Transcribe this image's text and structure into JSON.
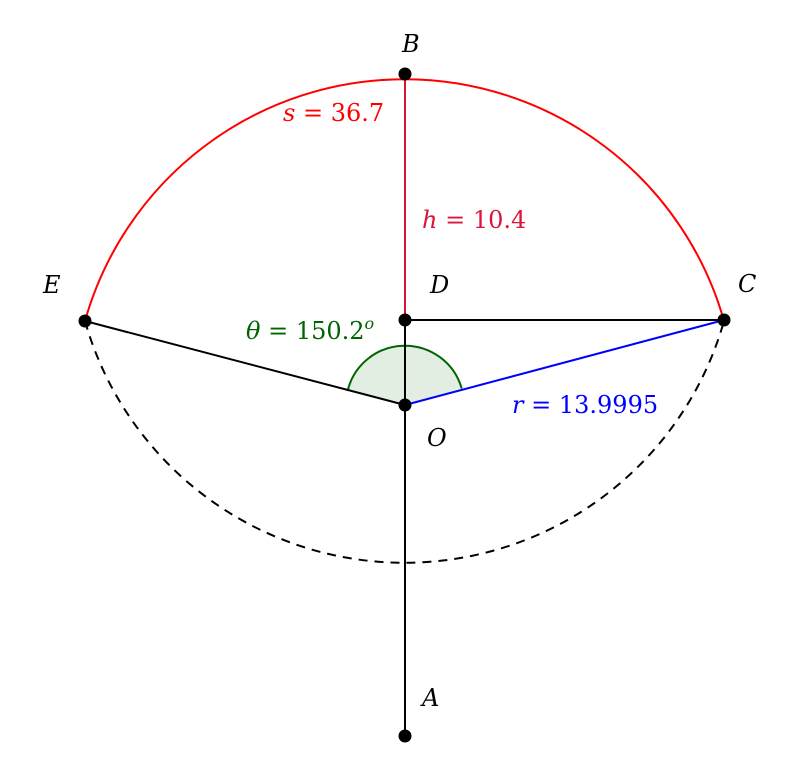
{
  "points": {
    "A": "A",
    "B": "B",
    "C": "C",
    "D": "D",
    "E": "E",
    "O": "O"
  },
  "measurements": {
    "arc": {
      "var": "s",
      "value": "36.7"
    },
    "height": {
      "var": "h",
      "value": "10.4"
    },
    "angle": {
      "var": "θ",
      "value": "150.2",
      "sup": "o"
    },
    "radius": {
      "var": "r",
      "value": "13.9995"
    }
  },
  "colors": {
    "arc": "#ff0000",
    "height": "#dc143c",
    "angle": "#006400",
    "angle_fill": "#e3eee3",
    "radius": "#0000ff",
    "lines": "#000000"
  }
}
